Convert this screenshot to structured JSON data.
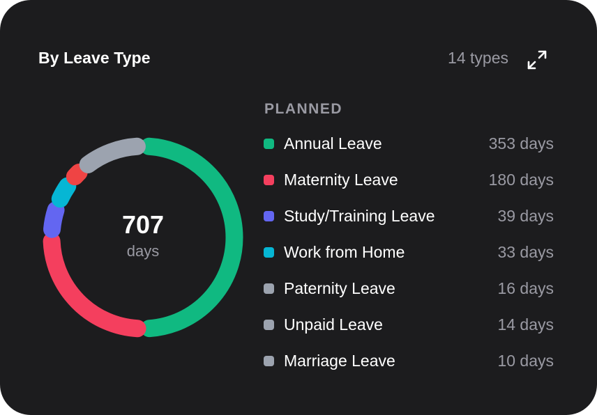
{
  "header": {
    "title": "By Leave Type",
    "count": "14 types"
  },
  "icons": {
    "expand": "expand-icon"
  },
  "colors": {
    "background": "#1c1c1e",
    "text": "#ffffff",
    "muted": "#9a9aa3"
  },
  "center": {
    "total": "707",
    "unit": "days"
  },
  "legend": {
    "section_label": "PLANNED"
  },
  "chart_data": {
    "type": "pie",
    "style": "donut",
    "total": 707,
    "total_label": "days",
    "series": [
      {
        "name": "Annual Leave",
        "value": 353,
        "display": "353 days",
        "color": "#10b981"
      },
      {
        "name": "Maternity Leave",
        "value": 180,
        "display": "180 days",
        "color": "#f43f5e"
      },
      {
        "name": "Study/Training Leave",
        "value": 39,
        "display": "39 days",
        "color": "#6366f1"
      },
      {
        "name": "Work from Home",
        "value": 33,
        "display": "33 days",
        "color": "#06b6d4"
      },
      {
        "name": "Paternity Leave",
        "value": 16,
        "display": "16 days",
        "color": "#9ca3af"
      },
      {
        "name": "Unpaid Leave",
        "value": 14,
        "display": "14 days",
        "color": "#9ca3af"
      },
      {
        "name": "Marriage Leave",
        "value": 10,
        "display": "10 days",
        "color": "#9ca3af"
      }
    ],
    "arc_segments": [
      {
        "value": 353,
        "color": "#10b981"
      },
      {
        "value": 180,
        "color": "#f43f5e"
      },
      {
        "value": 39,
        "color": "#6366f1"
      },
      {
        "value": 33,
        "color": "#06b6d4"
      },
      {
        "value": 22,
        "color": "#ef4444"
      },
      {
        "value": 80,
        "color": "#9ca3af"
      }
    ],
    "legend_position": "right"
  }
}
